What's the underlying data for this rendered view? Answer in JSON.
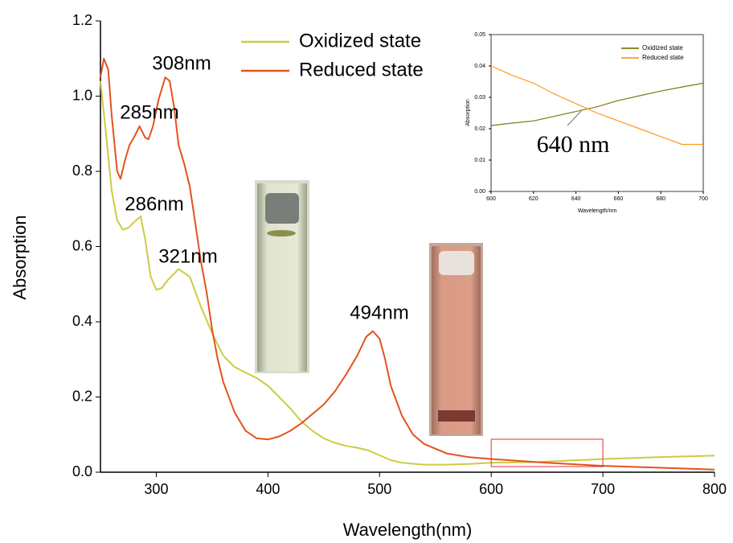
{
  "chart_data": [
    {
      "type": "line",
      "xlabel": "Wavelength(nm)",
      "ylabel": "Absorption",
      "xlim": [
        250,
        800
      ],
      "xticks": [
        300,
        400,
        500,
        600,
        700,
        800
      ],
      "ylim": [
        0,
        1.2
      ],
      "yticks": [
        {
          "value": 0,
          "label": "0.0"
        },
        0.2,
        0.4,
        0.6,
        0.8,
        {
          "value": 1,
          "label": "1.0"
        },
        1.2
      ],
      "legend": "upper center",
      "annotations": [
        "308nm",
        "285nm",
        "286nm",
        "321nm",
        "494nm"
      ],
      "series": [
        {
          "name": "Oxidized state",
          "color": "#cccc44",
          "x": [
            250,
            255,
            260,
            265,
            270,
            275,
            280,
            286,
            290,
            295,
            300,
            305,
            310,
            320,
            330,
            340,
            350,
            360,
            370,
            380,
            390,
            400,
            410,
            420,
            430,
            440,
            450,
            460,
            470,
            480,
            490,
            500,
            510,
            520,
            540,
            560,
            580,
            600,
            640,
            700,
            750,
            800
          ],
          "values": [
            1.04,
            0.9,
            0.75,
            0.67,
            0.645,
            0.65,
            0.665,
            0.68,
            0.62,
            0.52,
            0.485,
            0.49,
            0.51,
            0.54,
            0.52,
            0.44,
            0.37,
            0.31,
            0.28,
            0.265,
            0.25,
            0.23,
            0.2,
            0.17,
            0.135,
            0.11,
            0.09,
            0.078,
            0.07,
            0.065,
            0.058,
            0.045,
            0.032,
            0.025,
            0.02,
            0.02,
            0.022,
            0.025,
            0.027,
            0.035,
            0.04,
            0.044
          ]
        },
        {
          "name": "Reduced state",
          "color": "#e2531c",
          "x": [
            250,
            253,
            257,
            260,
            265,
            268,
            272,
            276,
            280,
            285,
            290,
            293,
            297,
            302,
            308,
            312,
            316,
            320,
            325,
            330,
            335,
            340,
            345,
            350,
            355,
            360,
            370,
            380,
            390,
            400,
            410,
            420,
            430,
            440,
            450,
            460,
            470,
            480,
            488,
            494,
            500,
            505,
            510,
            520,
            530,
            540,
            560,
            580,
            600,
            650,
            700,
            750,
            800
          ],
          "values": [
            1.05,
            1.1,
            1.07,
            0.95,
            0.8,
            0.78,
            0.83,
            0.87,
            0.89,
            0.92,
            0.89,
            0.885,
            0.92,
            0.99,
            1.05,
            1.04,
            0.97,
            0.87,
            0.82,
            0.76,
            0.66,
            0.56,
            0.48,
            0.38,
            0.3,
            0.24,
            0.16,
            0.11,
            0.09,
            0.087,
            0.095,
            0.11,
            0.13,
            0.155,
            0.18,
            0.215,
            0.26,
            0.31,
            0.36,
            0.375,
            0.355,
            0.3,
            0.23,
            0.15,
            0.1,
            0.075,
            0.05,
            0.04,
            0.035,
            0.025,
            0.017,
            0.012,
            0.007
          ]
        }
      ]
    },
    {
      "type": "line",
      "xlabel": "Wavelength/nm",
      "ylabel": "Absorption",
      "xlim": [
        600,
        700
      ],
      "xticks": [
        600,
        620,
        640,
        660,
        680,
        700
      ],
      "ylim": [
        0,
        0.05
      ],
      "yticks": [
        {
          "value": 0,
          "label": "0.00"
        },
        {
          "value": 0.01,
          "label": "0.01"
        },
        {
          "value": 0.02,
          "label": "0.02"
        },
        {
          "value": 0.03,
          "label": "0.03"
        },
        {
          "value": 0.04,
          "label": "0.04"
        },
        {
          "value": 0.05,
          "label": "0.05"
        }
      ],
      "legend": "upper right",
      "annotations": [
        "640 nm"
      ],
      "series": [
        {
          "name": "Oxidized state",
          "color": "#7a7a12",
          "x": [
            600,
            610,
            620,
            630,
            640,
            650,
            660,
            670,
            680,
            690,
            700
          ],
          "values": [
            0.021,
            0.0218,
            0.0225,
            0.024,
            0.0255,
            0.027,
            0.029,
            0.0305,
            0.032,
            0.0333,
            0.0345
          ]
        },
        {
          "name": "Reduced state",
          "color": "#ff9a22",
          "x": [
            600,
            610,
            620,
            630,
            640,
            650,
            660,
            670,
            680,
            690,
            700
          ],
          "values": [
            0.04,
            0.037,
            0.0345,
            0.031,
            0.028,
            0.025,
            0.0225,
            0.02,
            0.0175,
            0.015,
            0.015
          ]
        }
      ]
    }
  ]
}
